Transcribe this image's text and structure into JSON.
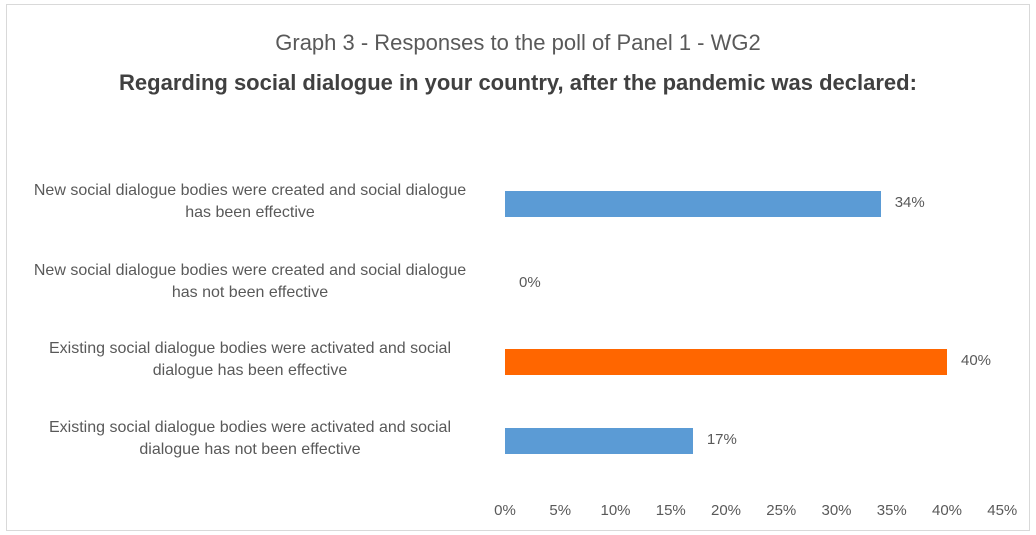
{
  "chart_data": {
    "type": "bar",
    "orientation": "horizontal",
    "title": "Graph 3 - Responses to the poll of Panel 1 - WG2",
    "subtitle": "Regarding social dialogue in your country, after the pandemic was declared:",
    "categories": [
      "New social dialogue bodies were created and social dialogue has been effective",
      "New social dialogue bodies were created and social dialogue has not been effective",
      "Existing social dialogue bodies were activated and social dialogue has been effective",
      "Existing social dialogue bodies were activated and social dialogue has not been effective"
    ],
    "values": [
      34,
      0,
      40,
      17
    ],
    "data_labels": [
      "34%",
      "0%",
      "40%",
      "17%"
    ],
    "bar_colors": [
      "#5b9bd5",
      "#5b9bd5",
      "#ff6600",
      "#5b9bd5"
    ],
    "xlim": [
      0,
      45
    ],
    "x_ticks": [
      "0%",
      "5%",
      "10%",
      "15%",
      "20%",
      "25%",
      "30%",
      "35%",
      "40%",
      "45%"
    ],
    "grid": false,
    "legend": "none"
  }
}
